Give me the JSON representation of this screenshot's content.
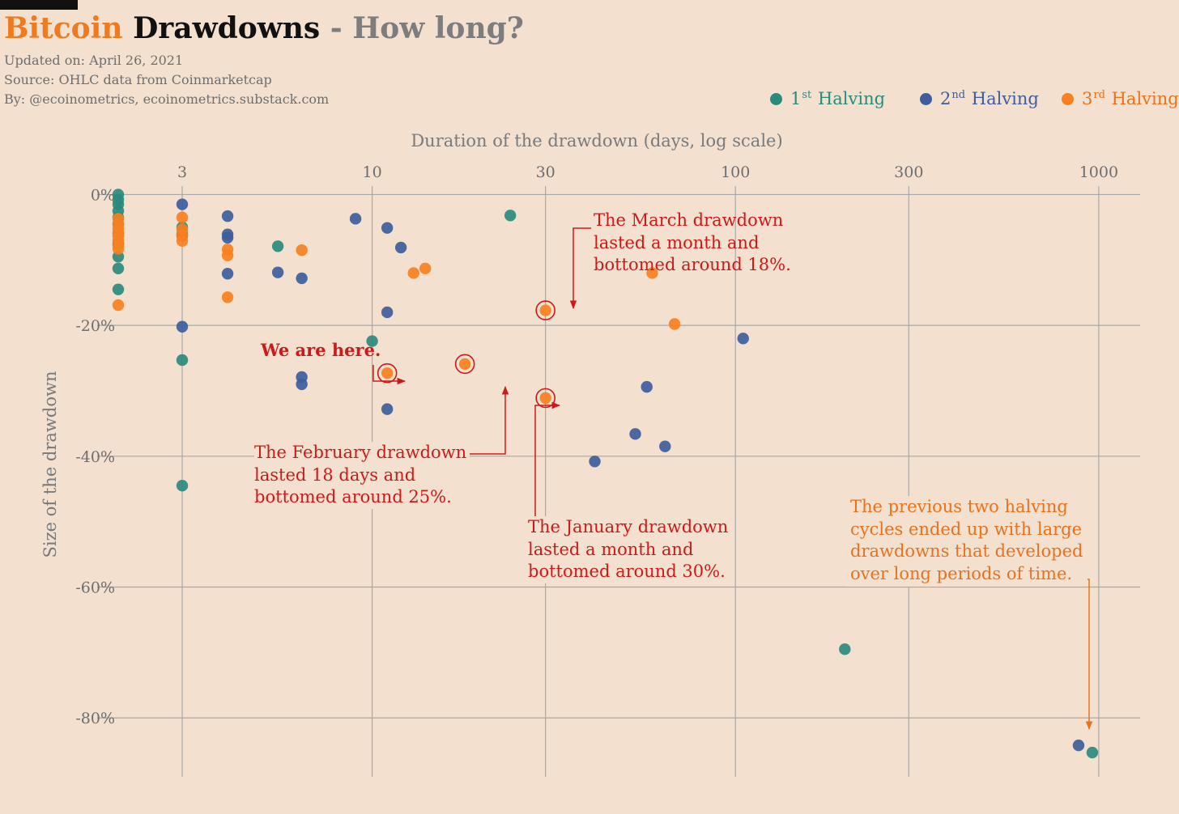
{
  "title": {
    "word1": "Bitcoin",
    "word2": "Drawdowns",
    "word3": "- How long?"
  },
  "meta": {
    "updated": "Updated on: April 26, 2021",
    "source": "Source: OHLC data from Coinmarketcap",
    "by": "By: @ecoinometrics, ecoinometrics.substack.com"
  },
  "colors": {
    "halving1": "#2a8a7e",
    "halving2": "#3d5d9c",
    "halving3": "#f7801f",
    "annotation": "#cc1a1a",
    "annotation_orange": "#e8731e",
    "grid": "#a8a8a8",
    "background": "#f3e0cf"
  },
  "legend": [
    {
      "num": "1",
      "sup": "st",
      "text": "Halving",
      "color": "#2a8a7e"
    },
    {
      "num": "2",
      "sup": "nd",
      "text": "Halving",
      "color": "#3d5d9c"
    },
    {
      "num": "3",
      "sup": "rd",
      "text": "Halving",
      "color": "#f7801f"
    }
  ],
  "annotations": {
    "here": "We are here.",
    "march": [
      "The March drawdown",
      "lasted a month and",
      "bottomed around 18%."
    ],
    "february": [
      "The February drawdown",
      "lasted 18 days and",
      "bottomed around 25%."
    ],
    "january": [
      "The January drawdown",
      "lasted a month and",
      "bottomed around 30%."
    ],
    "previous": [
      "The previous two halving",
      "cycles ended up with large",
      "drawdowns that developed",
      "over long periods of time."
    ]
  },
  "chart_data": {
    "type": "scatter",
    "xlabel": "Duration of the drawdown (days, log scale)",
    "ylabel": "Size of the drawdown",
    "x_scale": "log",
    "x_ticks": [
      3,
      10,
      30,
      100,
      300,
      1000
    ],
    "x_tick_labels": [
      "3",
      "10",
      "30",
      "100",
      "300",
      "1000"
    ],
    "y_ticks": [
      0,
      -20,
      -40,
      -60,
      -80
    ],
    "y_tick_labels": [
      "0%",
      "-20%",
      "-40%",
      "-60%",
      "-80%"
    ],
    "xlim": [
      1.75,
      1300
    ],
    "ylim": [
      -89,
      5
    ],
    "grid": true,
    "legend_position": "top-right",
    "series": [
      {
        "name": "1st Halving",
        "color": "#2a8a7e",
        "points": [
          [
            2,
            0
          ],
          [
            2,
            -0.8
          ],
          [
            2,
            -1.5
          ],
          [
            2,
            -2.5
          ],
          [
            2,
            -3.5
          ],
          [
            2,
            -4.5
          ],
          [
            2,
            -6
          ],
          [
            2,
            -7.5
          ],
          [
            2,
            -9.5
          ],
          [
            2,
            -11.3
          ],
          [
            2,
            -14.5
          ],
          [
            3,
            -5
          ],
          [
            3,
            -6
          ],
          [
            3,
            -25.3
          ],
          [
            3,
            -44.5
          ],
          [
            5.5,
            -7.9
          ],
          [
            10,
            -22.4
          ],
          [
            24,
            -3.2
          ],
          [
            200,
            -69.5
          ],
          [
            960,
            -85.3
          ]
        ]
      },
      {
        "name": "2nd Halving",
        "color": "#3d5d9c",
        "points": [
          [
            3,
            -1.5
          ],
          [
            3,
            -6.3
          ],
          [
            3,
            -20.2
          ],
          [
            4,
            -3.3
          ],
          [
            4,
            -6.1
          ],
          [
            4,
            -6.6
          ],
          [
            4,
            -12.1
          ],
          [
            5.5,
            -11.9
          ],
          [
            6.4,
            -12.8
          ],
          [
            6.4,
            -27.9
          ],
          [
            6.4,
            -29
          ],
          [
            9,
            -3.7
          ],
          [
            11,
            -5.1
          ],
          [
            11,
            -18
          ],
          [
            11,
            -32.8
          ],
          [
            12,
            -8.1
          ],
          [
            41,
            -40.8
          ],
          [
            53,
            -36.6
          ],
          [
            57,
            -29.4
          ],
          [
            64,
            -38.5
          ],
          [
            105,
            -22
          ],
          [
            880,
            -84.2
          ]
        ]
      },
      {
        "name": "3rd Halving",
        "color": "#f7801f",
        "points": [
          [
            2,
            -3.7
          ],
          [
            2,
            -4.6
          ],
          [
            2,
            -5.2
          ],
          [
            2,
            -5.8
          ],
          [
            2,
            -6.3
          ],
          [
            2,
            -7
          ],
          [
            2,
            -7.7
          ],
          [
            2,
            -8.3
          ],
          [
            2,
            -16.9
          ],
          [
            3,
            -3.5
          ],
          [
            3,
            -5.3
          ],
          [
            3,
            -6.2
          ],
          [
            3,
            -7.1
          ],
          [
            4,
            -8.4
          ],
          [
            4,
            -9.3
          ],
          [
            4,
            -15.7
          ],
          [
            6.4,
            -8.5
          ],
          [
            13,
            -12
          ],
          [
            14,
            -11.3
          ],
          [
            59,
            -12
          ],
          [
            68,
            -19.8
          ],
          [
            11,
            -27.3
          ],
          [
            18,
            -25.9
          ],
          [
            30,
            -17.7
          ],
          [
            30,
            -31.1
          ]
        ]
      }
    ],
    "highlighted": [
      [
        11,
        -27.3
      ],
      [
        18,
        -25.9
      ],
      [
        30,
        -17.7
      ],
      [
        30,
        -31.1
      ]
    ]
  }
}
